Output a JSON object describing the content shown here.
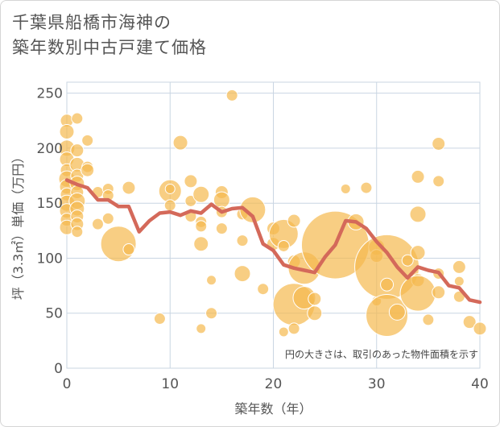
{
  "title_lines": [
    "千葉県船橋市海神の",
    "築年数別中古戸建て価格"
  ],
  "colors": {
    "bubble": "#f5b94e",
    "bubble_stroke": "#ffffff",
    "line": "#d4695a",
    "grid": "#c9d5e2",
    "plot_bg": "#ffffff"
  },
  "chart_data": {
    "type": "scatter",
    "xlabel": "築年数（年）",
    "ylabel": "坪（3.3㎡）単価（万円）",
    "xlim": [
      0,
      40
    ],
    "ylim": [
      0,
      260
    ],
    "x_ticks": [
      0,
      10,
      20,
      30,
      40
    ],
    "y_ticks": [
      0,
      50,
      100,
      150,
      200,
      250
    ],
    "grid": true,
    "annotation": "円の大きさは、取引のあった物件面積を示す",
    "bubbles": [
      {
        "x": 0,
        "y": 225,
        "r": 8
      },
      {
        "x": 0,
        "y": 215,
        "r": 9
      },
      {
        "x": 0,
        "y": 200,
        "r": 10
      },
      {
        "x": 0,
        "y": 190,
        "r": 9
      },
      {
        "x": 0,
        "y": 180,
        "r": 8
      },
      {
        "x": 0,
        "y": 172,
        "r": 10
      },
      {
        "x": 0,
        "y": 165,
        "r": 9
      },
      {
        "x": 0,
        "y": 158,
        "r": 8
      },
      {
        "x": 0,
        "y": 150,
        "r": 10
      },
      {
        "x": 0,
        "y": 143,
        "r": 9
      },
      {
        "x": 0,
        "y": 135,
        "r": 8
      },
      {
        "x": 0,
        "y": 128,
        "r": 9
      },
      {
        "x": 1,
        "y": 227,
        "r": 7
      },
      {
        "x": 1,
        "y": 198,
        "r": 8
      },
      {
        "x": 1,
        "y": 185,
        "r": 9
      },
      {
        "x": 1,
        "y": 175,
        "r": 8
      },
      {
        "x": 1,
        "y": 168,
        "r": 9
      },
      {
        "x": 1,
        "y": 160,
        "r": 8
      },
      {
        "x": 1,
        "y": 152,
        "r": 10
      },
      {
        "x": 1,
        "y": 145,
        "r": 9
      },
      {
        "x": 1,
        "y": 138,
        "r": 8
      },
      {
        "x": 1,
        "y": 131,
        "r": 8
      },
      {
        "x": 1,
        "y": 124,
        "r": 7
      },
      {
        "x": 2,
        "y": 207,
        "r": 7
      },
      {
        "x": 2,
        "y": 183,
        "r": 7
      },
      {
        "x": 2,
        "y": 180,
        "r": 8
      },
      {
        "x": 3,
        "y": 160,
        "r": 7
      },
      {
        "x": 3,
        "y": 131,
        "r": 7
      },
      {
        "x": 4,
        "y": 163,
        "r": 7
      },
      {
        "x": 4,
        "y": 157,
        "r": 7
      },
      {
        "x": 4,
        "y": 136,
        "r": 7
      },
      {
        "x": 5,
        "y": 113,
        "r": 22
      },
      {
        "x": 6,
        "y": 164,
        "r": 8
      },
      {
        "x": 6,
        "y": 108,
        "r": 7
      },
      {
        "x": 9,
        "y": 45,
        "r": 7
      },
      {
        "x": 10,
        "y": 161,
        "r": 14
      },
      {
        "x": 10,
        "y": 163,
        "r": 6
      },
      {
        "x": 10,
        "y": 148,
        "r": 7
      },
      {
        "x": 11,
        "y": 205,
        "r": 9
      },
      {
        "x": 12,
        "y": 170,
        "r": 8
      },
      {
        "x": 12,
        "y": 152,
        "r": 7
      },
      {
        "x": 12,
        "y": 138,
        "r": 7
      },
      {
        "x": 13,
        "y": 158,
        "r": 10
      },
      {
        "x": 13,
        "y": 133,
        "r": 7
      },
      {
        "x": 13,
        "y": 129,
        "r": 7
      },
      {
        "x": 13,
        "y": 113,
        "r": 9
      },
      {
        "x": 13,
        "y": 36,
        "r": 6
      },
      {
        "x": 14,
        "y": 80,
        "r": 6
      },
      {
        "x": 14,
        "y": 50,
        "r": 7
      },
      {
        "x": 15,
        "y": 160,
        "r": 8
      },
      {
        "x": 15,
        "y": 153,
        "r": 10
      },
      {
        "x": 15,
        "y": 142,
        "r": 7
      },
      {
        "x": 15,
        "y": 127,
        "r": 7
      },
      {
        "x": 16,
        "y": 248,
        "r": 7
      },
      {
        "x": 17,
        "y": 140,
        "r": 7
      },
      {
        "x": 17,
        "y": 116,
        "r": 7
      },
      {
        "x": 17,
        "y": 86,
        "r": 10
      },
      {
        "x": 18,
        "y": 144,
        "r": 16
      },
      {
        "x": 19,
        "y": 72,
        "r": 7
      },
      {
        "x": 20,
        "y": 127,
        "r": 8
      },
      {
        "x": 20,
        "y": 113,
        "r": 8
      },
      {
        "x": 21,
        "y": 122,
        "r": 18
      },
      {
        "x": 21,
        "y": 111,
        "r": 7
      },
      {
        "x": 21,
        "y": 33,
        "r": 6
      },
      {
        "x": 22,
        "y": 134,
        "r": 8
      },
      {
        "x": 22,
        "y": 97,
        "r": 8
      },
      {
        "x": 22,
        "y": 58,
        "r": 26
      },
      {
        "x": 22,
        "y": 36,
        "r": 7
      },
      {
        "x": 23,
        "y": 91,
        "r": 20
      },
      {
        "x": 23,
        "y": 64,
        "r": 14
      },
      {
        "x": 24,
        "y": 63,
        "r": 8
      },
      {
        "x": 24,
        "y": 50,
        "r": 9
      },
      {
        "x": 26,
        "y": 112,
        "r": 42
      },
      {
        "x": 27,
        "y": 163,
        "r": 6
      },
      {
        "x": 28,
        "y": 133,
        "r": 10
      },
      {
        "x": 29,
        "y": 164,
        "r": 7
      },
      {
        "x": 30,
        "y": 110,
        "r": 10
      },
      {
        "x": 30,
        "y": 102,
        "r": 8
      },
      {
        "x": 30,
        "y": 61,
        "r": 6
      },
      {
        "x": 31,
        "y": 92,
        "r": 40
      },
      {
        "x": 31,
        "y": 76,
        "r": 8
      },
      {
        "x": 31,
        "y": 48,
        "r": 26
      },
      {
        "x": 32,
        "y": 51,
        "r": 10
      },
      {
        "x": 33,
        "y": 98,
        "r": 7
      },
      {
        "x": 34,
        "y": 174,
        "r": 8
      },
      {
        "x": 34,
        "y": 140,
        "r": 10
      },
      {
        "x": 34,
        "y": 105,
        "r": 9
      },
      {
        "x": 34,
        "y": 80,
        "r": 8
      },
      {
        "x": 34,
        "y": 68,
        "r": 22
      },
      {
        "x": 35,
        "y": 44,
        "r": 7
      },
      {
        "x": 36,
        "y": 204,
        "r": 8
      },
      {
        "x": 36,
        "y": 170,
        "r": 7
      },
      {
        "x": 36,
        "y": 86,
        "r": 7
      },
      {
        "x": 36,
        "y": 69,
        "r": 8
      },
      {
        "x": 38,
        "y": 92,
        "r": 8
      },
      {
        "x": 38,
        "y": 79,
        "r": 6
      },
      {
        "x": 38,
        "y": 65,
        "r": 7
      },
      {
        "x": 39,
        "y": 42,
        "r": 8
      },
      {
        "x": 40,
        "y": 36,
        "r": 8
      }
    ],
    "series": [
      {
        "type": "line",
        "x": [
          0,
          1,
          2,
          3,
          4,
          5,
          6,
          7,
          8,
          9,
          10,
          11,
          12,
          13,
          14,
          15,
          16,
          17,
          18,
          19,
          20,
          21,
          22,
          23,
          24,
          25,
          26,
          27,
          28,
          29,
          30,
          31,
          32,
          33,
          34,
          35,
          36,
          37,
          38,
          39,
          40
        ],
        "y": [
          171,
          167,
          164,
          153,
          153,
          147,
          147,
          124,
          134,
          141,
          142,
          139,
          143,
          141,
          149,
          142,
          145,
          146,
          138,
          113,
          107,
          94,
          91,
          89,
          87,
          101,
          112,
          134,
          133,
          127,
          115,
          105,
          92,
          82,
          92,
          89,
          87,
          75,
          73,
          62,
          60
        ]
      }
    ]
  }
}
